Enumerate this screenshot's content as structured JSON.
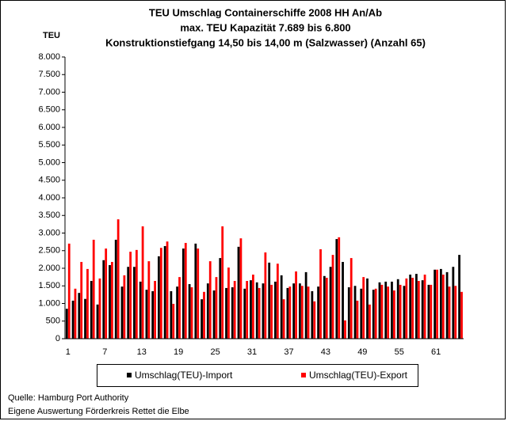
{
  "chart_data": {
    "type": "bar",
    "title": [
      "TEU Umschlag Containerschiffe 2008 HH An/Ab",
      "max. TEU Kapazität 7.689 bis 6.800",
      "Konstruktionstiefgang 14,50 bis 14,00 m (Salzwasser)  (Anzahl 65)"
    ],
    "y_label": "TEU",
    "categories": [
      "1",
      null,
      null,
      null,
      null,
      null,
      "7",
      null,
      null,
      null,
      null,
      null,
      "13",
      null,
      null,
      null,
      null,
      null,
      "19",
      null,
      null,
      null,
      null,
      null,
      "25",
      null,
      null,
      null,
      null,
      null,
      "31",
      null,
      null,
      null,
      null,
      null,
      "37",
      null,
      null,
      null,
      null,
      null,
      "43",
      null,
      null,
      null,
      null,
      null,
      "49",
      null,
      null,
      null,
      null,
      null,
      "55",
      null,
      null,
      null,
      null,
      null,
      "61",
      null,
      null,
      null,
      null
    ],
    "series": [
      {
        "name": "Umschlag(TEU)-Import",
        "color": "#000000",
        "values": [
          850,
          1080,
          1300,
          1130,
          1640,
          970,
          2230,
          2090,
          2810,
          1480,
          2040,
          2040,
          1620,
          1390,
          1350,
          2340,
          2630,
          1350,
          1480,
          2560,
          1550,
          2700,
          1120,
          1570,
          1370,
          2290,
          1440,
          1460,
          2610,
          1420,
          1660,
          1600,
          1570,
          2160,
          1620,
          1800,
          1440,
          1570,
          1570,
          1890,
          1350,
          1480,
          1780,
          2040,
          2830,
          2180,
          1460,
          1500,
          1420,
          1710,
          1390,
          1600,
          1620,
          1620,
          1690,
          1500,
          1820,
          1840,
          1660,
          1530,
          1960,
          1980,
          1890,
          2040,
          2380
        ]
      },
      {
        "name": "Umschlag(TEU)-Export",
        "color": "#ff0000",
        "values": [
          2700,
          1420,
          2180,
          1980,
          2810,
          1710,
          2560,
          2180,
          3390,
          1800,
          2470,
          2520,
          3190,
          2200,
          1640,
          2580,
          2760,
          990,
          1750,
          2720,
          1460,
          2560,
          1330,
          2200,
          1750,
          3190,
          2020,
          1640,
          2850,
          1640,
          1820,
          1440,
          2450,
          1530,
          2130,
          1120,
          1480,
          1910,
          1500,
          1480,
          1060,
          2540,
          1730,
          2380,
          2880,
          520,
          2290,
          1080,
          1750,
          970,
          1420,
          1530,
          1480,
          1370,
          1530,
          1710,
          1730,
          1640,
          1820,
          1530,
          1960,
          1820,
          1480,
          1500,
          1330
        ]
      }
    ],
    "ylim": [
      0,
      8000
    ],
    "yticks": [
      0,
      {
        "value": 500,
        "label": "500"
      },
      {
        "value": 1000,
        "label": "1.000"
      },
      {
        "value": 1500,
        "label": "1.500"
      },
      {
        "value": 2000,
        "label": "2.000"
      },
      {
        "value": 2500,
        "label": "2.500"
      },
      {
        "value": 3000,
        "label": "3.000"
      },
      {
        "value": 3500,
        "label": "3.500"
      },
      {
        "value": 4000,
        "label": "4.000"
      },
      {
        "value": 4500,
        "label": "4.500"
      },
      {
        "value": 5000,
        "label": "5.000"
      },
      {
        "value": 5500,
        "label": "5.500"
      },
      {
        "value": 6000,
        "label": "6.000"
      },
      {
        "value": 6500,
        "label": "6.500"
      },
      {
        "value": 7000,
        "label": "7.000"
      },
      {
        "value": 7500,
        "label": "7.500"
      },
      {
        "value": 8000,
        "label": "8.000"
      }
    ],
    "grid": false,
    "legend": "bottom",
    "notes": [
      "Quelle: Hamburg Port Authority",
      "Eigene Auswertung Förderkreis Rettet die Elbe"
    ]
  }
}
